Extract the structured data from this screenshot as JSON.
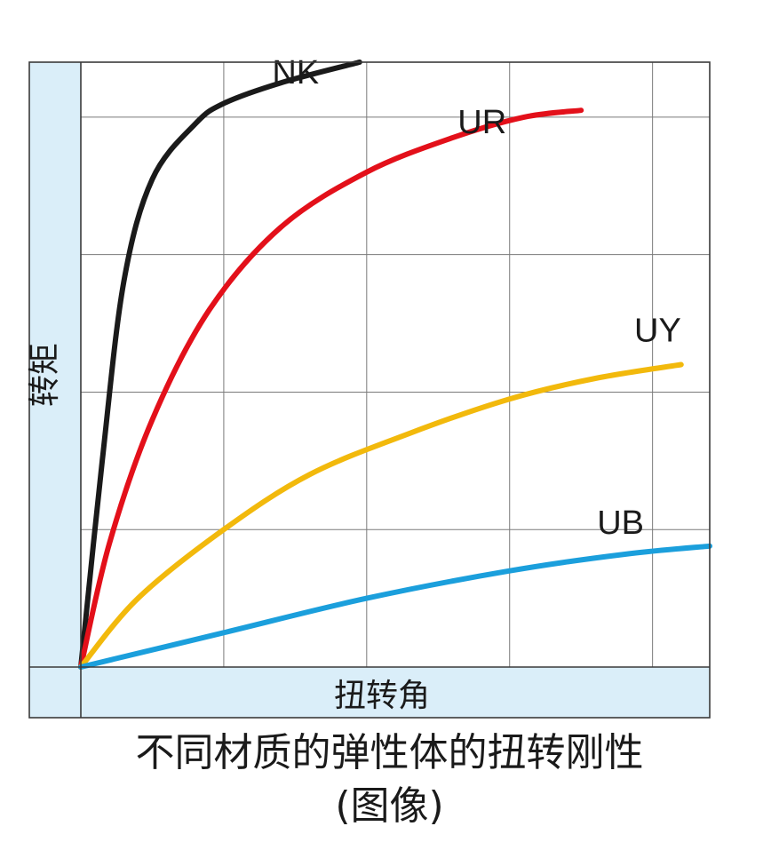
{
  "chart_data": {
    "type": "line",
    "xlabel": "扭转角",
    "ylabel": "转矩",
    "xlim": [
      0,
      4.4
    ],
    "ylim": [
      0,
      4.4
    ],
    "grid": true,
    "ticks_labeled": false,
    "series": [
      {
        "name": "NK",
        "color": "#1a1a1a",
        "points": [
          [
            0,
            0
          ],
          [
            0.15,
            1.5
          ],
          [
            0.3,
            2.8
          ],
          [
            0.5,
            3.55
          ],
          [
            0.8,
            3.95
          ],
          [
            1.0,
            4.1
          ],
          [
            1.4,
            4.25
          ],
          [
            1.95,
            4.4
          ]
        ]
      },
      {
        "name": "UR",
        "color": "#e3101a",
        "points": [
          [
            0,
            0
          ],
          [
            0.2,
            0.9
          ],
          [
            0.5,
            1.8
          ],
          [
            0.9,
            2.6
          ],
          [
            1.4,
            3.2
          ],
          [
            2.0,
            3.6
          ],
          [
            2.6,
            3.85
          ],
          [
            3.1,
            4.0
          ],
          [
            3.5,
            4.05
          ]
        ]
      },
      {
        "name": "UY",
        "color": "#f2b90c",
        "points": [
          [
            0,
            0
          ],
          [
            0.4,
            0.5
          ],
          [
            1.0,
            1.0
          ],
          [
            1.6,
            1.4
          ],
          [
            2.3,
            1.7
          ],
          [
            3.0,
            1.95
          ],
          [
            3.6,
            2.1
          ],
          [
            4.2,
            2.2
          ]
        ]
      },
      {
        "name": "UB",
        "color": "#1b9fdc",
        "points": [
          [
            0,
            0
          ],
          [
            1.0,
            0.25
          ],
          [
            2.0,
            0.5
          ],
          [
            3.0,
            0.7
          ],
          [
            3.8,
            0.82
          ],
          [
            4.4,
            0.88
          ]
        ]
      }
    ]
  },
  "caption": {
    "line1": "不同材质的弹性体的扭转刚性",
    "line2": "(图像)"
  },
  "colors": {
    "axis_band": "#daeef9",
    "grid": "#7a7a7a",
    "frame": "#3a3a3a"
  }
}
